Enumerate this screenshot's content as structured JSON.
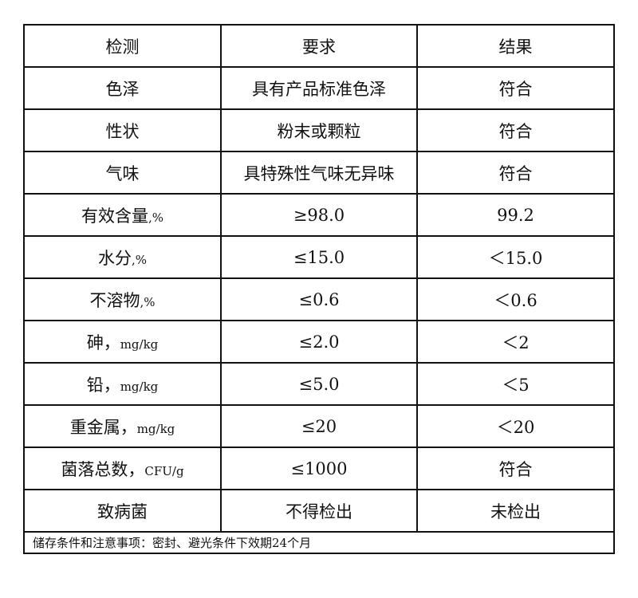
{
  "headers": [
    "检测",
    "要求",
    "结果"
  ],
  "rows": [
    {
      "item": "色泽",
      "unit": "",
      "requirement": "具有产品标准色泽",
      "result": "符合"
    },
    {
      "item": "性状",
      "unit": "",
      "requirement": "粉末或颗粒",
      "result": "符合"
    },
    {
      "item": "气味",
      "unit": "",
      "requirement": "具特殊性气味无异味",
      "result": "符合"
    },
    {
      "item": "有效含量",
      "unit": ",%",
      "requirement": "≥98.0",
      "result": "99.2"
    },
    {
      "item": "水分",
      "unit": ",%",
      "requirement": "≤15.0",
      "result": "＜15.0"
    },
    {
      "item": "不溶物",
      "unit": ",%",
      "requirement": "≤0.6",
      "result": "＜0.6"
    },
    {
      "item": "砷，",
      "unit": "mg/kg",
      "requirement": "≤2.0",
      "result": "＜2"
    },
    {
      "item": "铅，",
      "unit": "mg/kg",
      "requirement": "≤5.0",
      "result": "＜5"
    },
    {
      "item": "重金属，",
      "unit": "mg/kg",
      "requirement": "≤20",
      "result": "＜20"
    },
    {
      "item": "菌落总数，",
      "unit": "CFU/g",
      "requirement": "≤1000",
      "result": "符合"
    },
    {
      "item": "致病菌",
      "unit": "",
      "requirement": "不得检出",
      "result": "未检出"
    }
  ],
  "note": "储存条件和注意事项：密封、避光条件下效期24个月"
}
